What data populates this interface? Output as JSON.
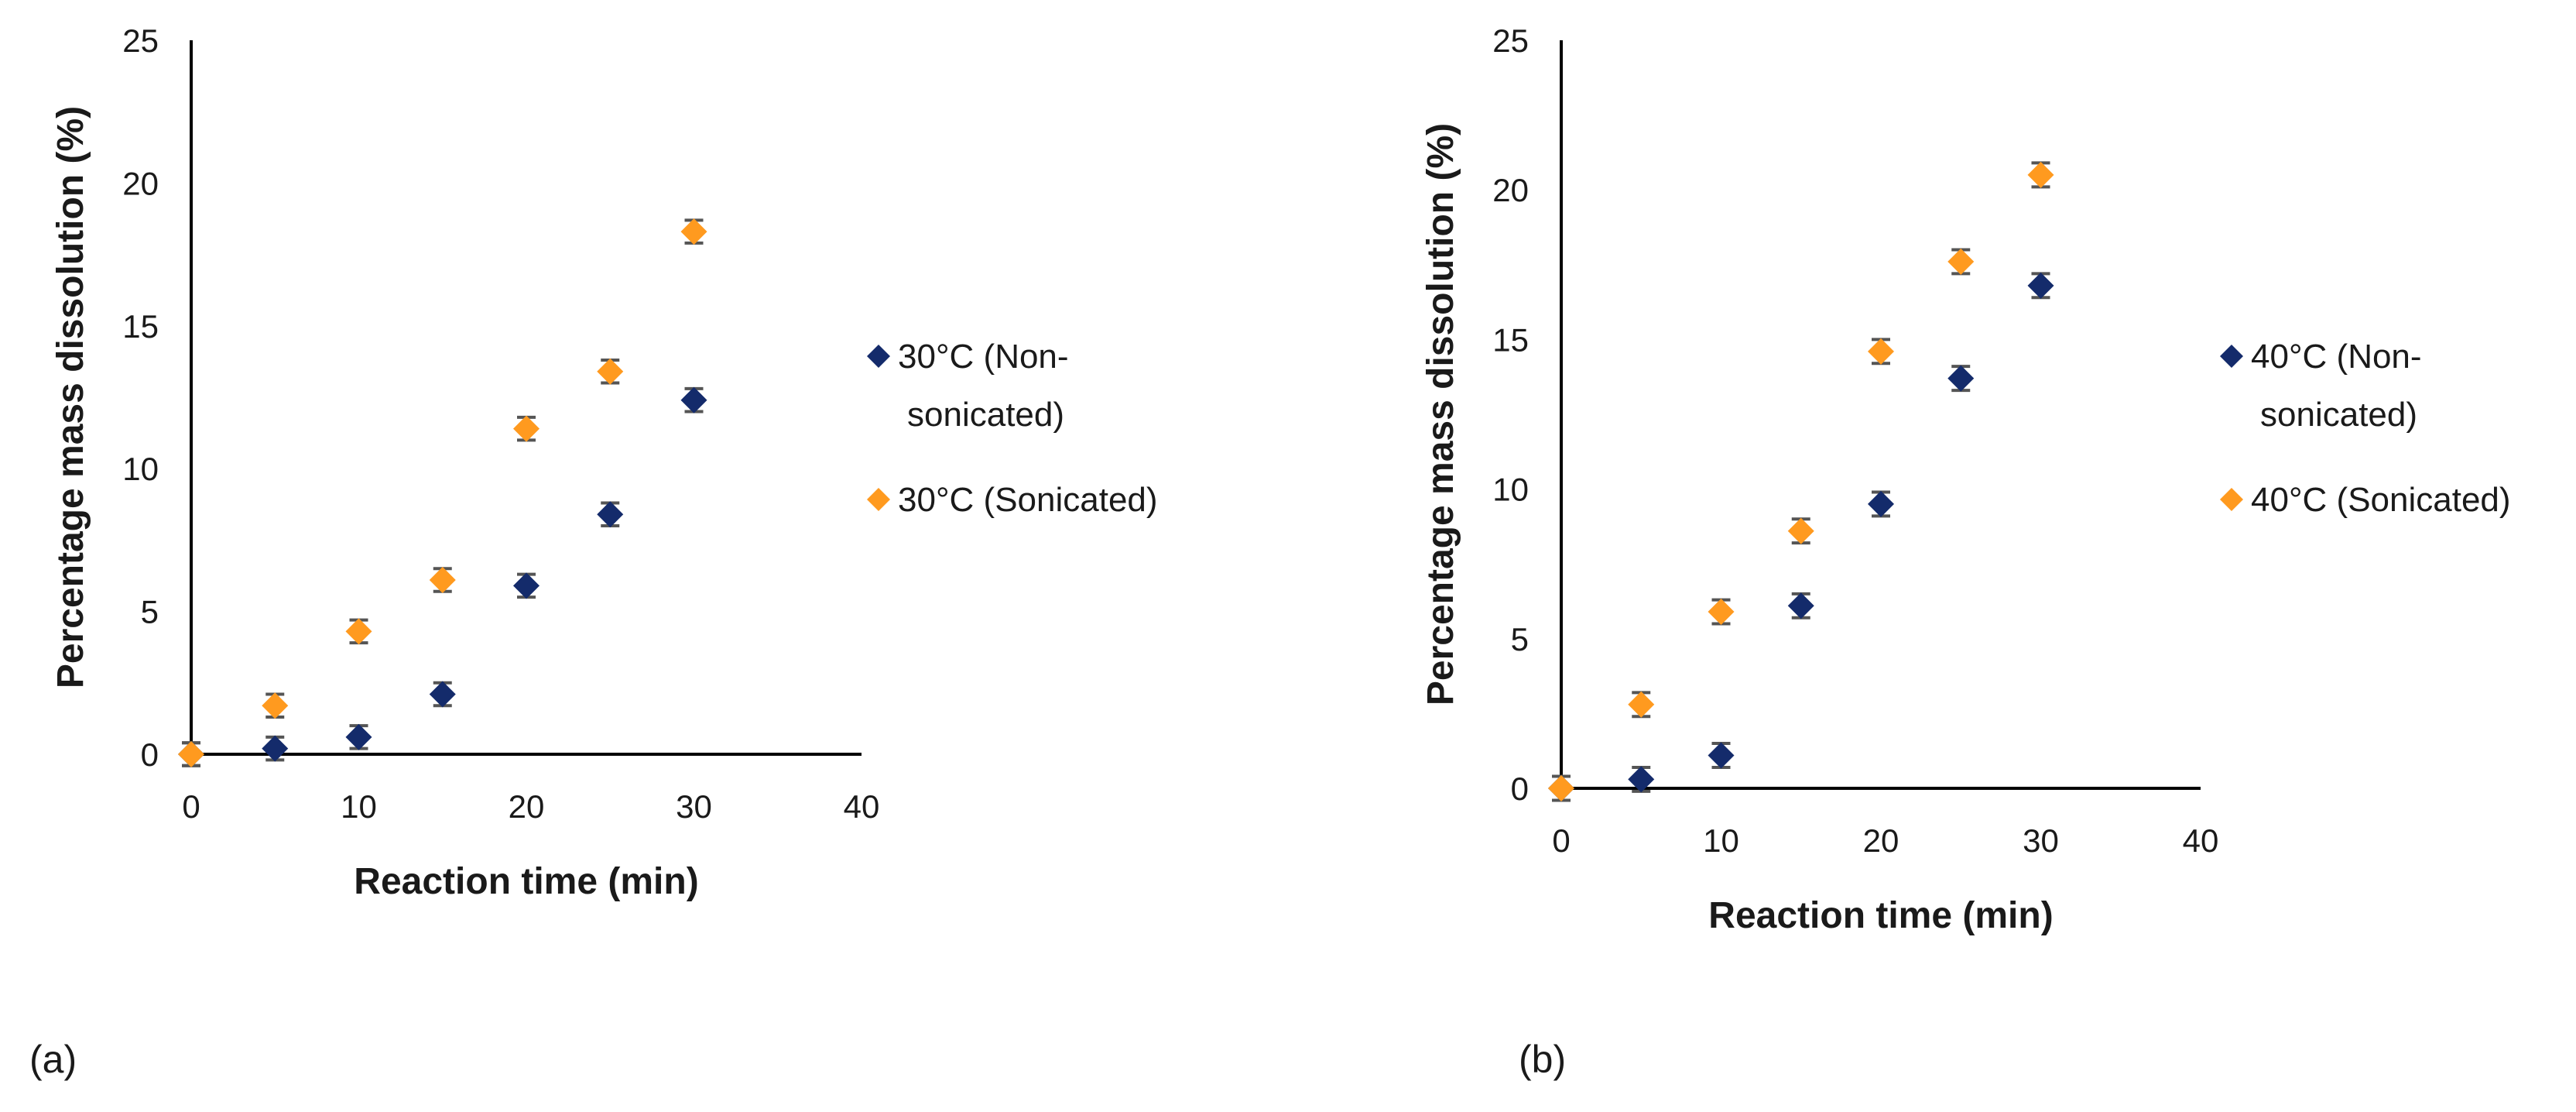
{
  "colors": {
    "non_sonicated": "#142b6b",
    "sonicated": "#ff9a1f",
    "error_bar": "#555555"
  },
  "marker": "diamond",
  "chart_data": [
    {
      "type": "scatter",
      "panel_label": "(a)",
      "xlabel": "Reaction time (min)",
      "ylabel": "Percentage mass dissolution (%)",
      "xlim": [
        0,
        40
      ],
      "ylim": [
        0,
        25
      ],
      "x_ticks": [
        "0",
        "10",
        "20",
        "30",
        "40"
      ],
      "y_ticks": [
        "0",
        "5",
        "10",
        "15",
        "20",
        "25"
      ],
      "x_tick_values": [
        0,
        10,
        20,
        30,
        40
      ],
      "y_tick_values": [
        0,
        5,
        10,
        15,
        20,
        25
      ],
      "grid": false,
      "legend_position": "right",
      "series": [
        {
          "name": "30°C (Non-sonicated)",
          "legend_lines": [
            "30°C (Non-",
            "sonicated)"
          ],
          "color_key": "non_sonicated",
          "x": [
            0,
            5,
            10,
            15,
            20,
            25,
            30
          ],
          "y": [
            0,
            0.2,
            0.6,
            2.1,
            5.9,
            8.4,
            12.4
          ],
          "yerr": 0.4
        },
        {
          "name": "30°C (Sonicated)",
          "legend_lines": [
            "30°C (Sonicated)"
          ],
          "color_key": "sonicated",
          "x": [
            0,
            5,
            10,
            15,
            20,
            25,
            30
          ],
          "y": [
            0,
            1.7,
            4.3,
            6.1,
            11.4,
            13.4,
            18.3
          ],
          "yerr": 0.4
        }
      ]
    },
    {
      "type": "scatter",
      "panel_label": "(b)",
      "xlabel": "Reaction time (min)",
      "ylabel": "Percentage mass dissolution (%)",
      "xlim": [
        0,
        40
      ],
      "ylim": [
        0,
        25
      ],
      "x_ticks": [
        "0",
        "10",
        "20",
        "30",
        "40"
      ],
      "y_ticks": [
        "0",
        "5",
        "10",
        "15",
        "20",
        "25"
      ],
      "x_tick_values": [
        0,
        10,
        20,
        30,
        40
      ],
      "y_tick_values": [
        0,
        5,
        10,
        15,
        20,
        25
      ],
      "grid": false,
      "legend_position": "right",
      "series": [
        {
          "name": "40°C (Non-sonicated)",
          "legend_lines": [
            "40°C (Non-",
            "sonicated)"
          ],
          "color_key": "non_sonicated",
          "x": [
            0,
            5,
            10,
            15,
            20,
            25,
            30
          ],
          "y": [
            0,
            0.3,
            1.1,
            6.1,
            9.5,
            13.7,
            16.8
          ],
          "yerr": 0.4
        },
        {
          "name": "40°C (Sonicated)",
          "legend_lines": [
            "40°C (Sonicated)"
          ],
          "color_key": "sonicated",
          "x": [
            0,
            5,
            10,
            15,
            20,
            25,
            30
          ],
          "y": [
            0,
            2.8,
            5.9,
            8.6,
            14.6,
            17.6,
            20.5
          ],
          "yerr": 0.4
        }
      ]
    }
  ]
}
